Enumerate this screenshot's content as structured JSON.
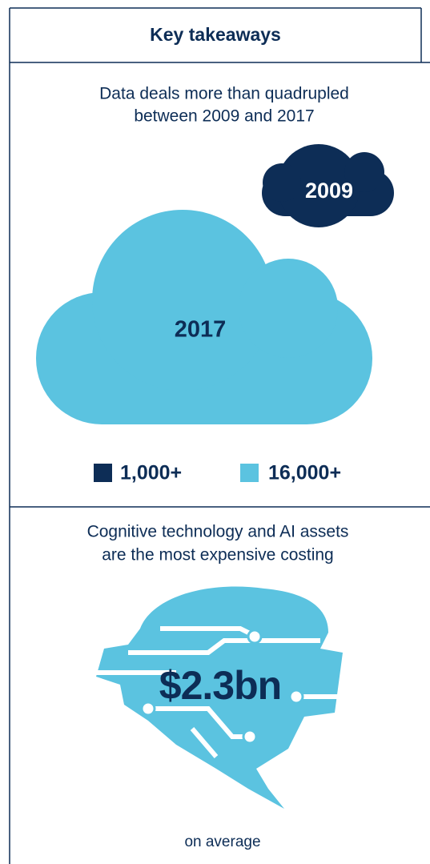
{
  "header": {
    "title": "Key takeaways"
  },
  "deals": {
    "text_lines": [
      "Data deals more than quadrupled",
      "between 2009 and 2017"
    ],
    "clouds": [
      {
        "year": "2009",
        "legend": "1,000+"
      },
      {
        "year": "2017",
        "legend": "16,000+"
      }
    ]
  },
  "assets": {
    "text_lines": [
      "Cognitive technology and AI assets",
      "are the most expensive costing"
    ],
    "value": "$2.3bn",
    "note": "on average"
  }
}
